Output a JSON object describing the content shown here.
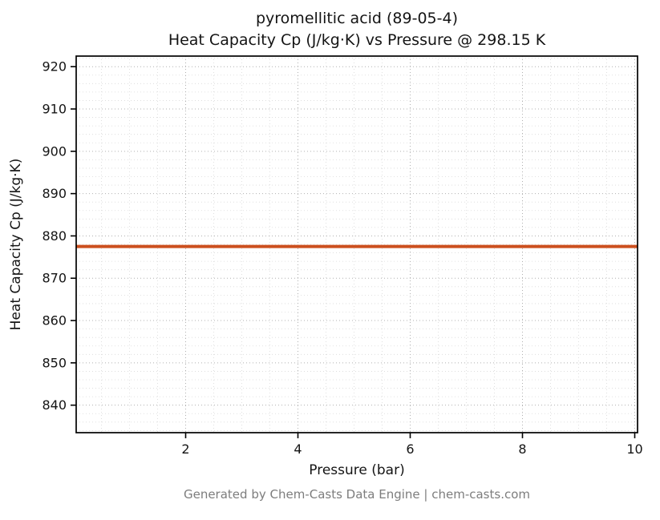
{
  "title_line1": "pyromellitic acid (89-05-4)",
  "title_line2": "Heat Capacity Cp (J/kg·K) vs Pressure @ 298.15 K",
  "footer": "Generated by Chem-Casts Data Engine | chem-casts.com",
  "chart_data": {
    "type": "line",
    "title": "pyromellitic acid (89-05-4)\nHeat Capacity Cp (J/kg·K) vs Pressure @ 298.15 K",
    "xlabel": "Pressure (bar)",
    "ylabel": "Heat Capacity Cp (J/kg·K)",
    "xlim": [
      0.05,
      10.05
    ],
    "ylim": [
      833.5,
      922.5
    ],
    "xticks": [
      2,
      4,
      6,
      8,
      10
    ],
    "yticks": [
      840,
      850,
      860,
      870,
      880,
      890,
      900,
      910,
      920
    ],
    "grid": true,
    "minor_grid": true,
    "legend": "none",
    "series": [
      {
        "name": "Heat Capacity Cp",
        "x": [
          0.05,
          10.05
        ],
        "y": [
          877.5,
          877.5
        ],
        "color": "#cc4f1e",
        "line_width": 4
      }
    ]
  },
  "colors": {
    "line": "#cc4f1e",
    "spine": "#000000",
    "grid_major": "#b0b0b0",
    "grid_minor": "#d9d9d9",
    "footer": "#7d7d7d"
  }
}
